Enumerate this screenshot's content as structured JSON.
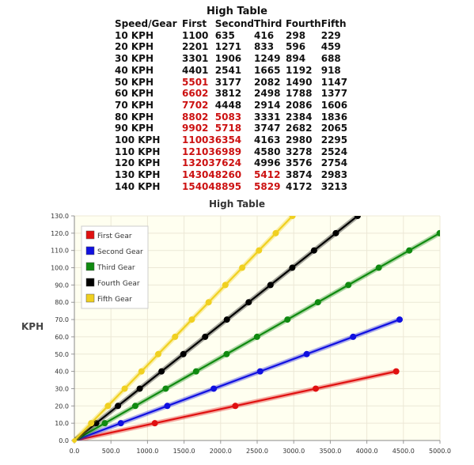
{
  "table": {
    "title": "High Table",
    "headers": [
      "Speed/Gear",
      "First",
      "Second",
      "Third",
      "Fourth",
      "Fifth"
    ],
    "rows": [
      {
        "cells": [
          "10 KPH",
          "1100",
          "635",
          "416",
          "298",
          "229"
        ],
        "red": []
      },
      {
        "cells": [
          "20 KPH",
          "2201",
          "1271",
          "833",
          "596",
          "459"
        ],
        "red": []
      },
      {
        "cells": [
          "30 KPH",
          "3301",
          "1906",
          "1249",
          "894",
          "688"
        ],
        "red": []
      },
      {
        "cells": [
          "40 KPH",
          "4401",
          "2541",
          "1665",
          "1192",
          "918"
        ],
        "red": []
      },
      {
        "cells": [
          "50 KPH",
          "5501",
          "3177",
          "2082",
          "1490",
          "1147"
        ],
        "red": [
          1
        ]
      },
      {
        "cells": [
          "60 KPH",
          "6602",
          "3812",
          "2498",
          "1788",
          "1377"
        ],
        "red": [
          1
        ]
      },
      {
        "cells": [
          "70 KPH",
          "7702",
          "4448",
          "2914",
          "2086",
          "1606"
        ],
        "red": [
          1
        ]
      },
      {
        "cells": [
          "80 KPH",
          "8802",
          "5083",
          "3331",
          "2384",
          "1836"
        ],
        "red": [
          1,
          2
        ]
      },
      {
        "cells": [
          "90 KPH",
          "9902",
          "5718",
          "3747",
          "2682",
          "2065"
        ],
        "red": [
          1,
          2
        ]
      },
      {
        "cells": [
          "100 KPH",
          "11003",
          "6354",
          "4163",
          "2980",
          "2295"
        ],
        "red": [
          1,
          2
        ]
      },
      {
        "cells": [
          "110 KPH",
          "12103",
          "6989",
          "4580",
          "3278",
          "2524"
        ],
        "red": [
          1,
          2
        ]
      },
      {
        "cells": [
          "120 KPH",
          "13203",
          "7624",
          "4996",
          "3576",
          "2754"
        ],
        "red": [
          1,
          2
        ]
      },
      {
        "cells": [
          "130 KPH",
          "14304",
          "8260",
          "5412",
          "3874",
          "2983"
        ],
        "red": [
          1,
          2,
          3
        ]
      },
      {
        "cells": [
          "140 KPH",
          "15404",
          "8895",
          "5829",
          "4172",
          "3213"
        ],
        "red": [
          1,
          2,
          3
        ]
      }
    ]
  },
  "chart_data": {
    "type": "line",
    "title": "High Table",
    "xlabel": "",
    "ylabel": "KPH",
    "xlim": [
      0,
      5000
    ],
    "ylim": [
      0,
      130
    ],
    "xticks": [
      "0.0",
      "500.0",
      "1000.0",
      "1500.0",
      "2000.0",
      "2500.0",
      "3000.0",
      "3500.0",
      "4000.0",
      "4500.0",
      "5000.0"
    ],
    "yticks": [
      "0.0",
      "10.0",
      "20.0",
      "30.0",
      "40.0",
      "50.0",
      "60.0",
      "70.0",
      "80.0",
      "90.0",
      "100.0",
      "110.0",
      "120.0",
      "130.0"
    ],
    "grid": true,
    "legend_position": "top-left",
    "series": [
      {
        "name": "First Gear",
        "color": "#e01010",
        "points": [
          [
            0,
            0
          ],
          [
            1100,
            10
          ],
          [
            2201,
            20
          ],
          [
            3301,
            30
          ],
          [
            4401,
            40
          ]
        ]
      },
      {
        "name": "Second Gear",
        "color": "#1010e0",
        "points": [
          [
            0,
            0
          ],
          [
            635,
            10
          ],
          [
            1271,
            20
          ],
          [
            1906,
            30
          ],
          [
            2541,
            40
          ],
          [
            3177,
            50
          ],
          [
            3812,
            60
          ],
          [
            4448,
            70
          ]
        ]
      },
      {
        "name": "Third Gear",
        "color": "#108a10",
        "points": [
          [
            0,
            0
          ],
          [
            416,
            10
          ],
          [
            833,
            20
          ],
          [
            1249,
            30
          ],
          [
            1665,
            40
          ],
          [
            2082,
            50
          ],
          [
            2498,
            60
          ],
          [
            2914,
            70
          ],
          [
            3331,
            80
          ],
          [
            3747,
            90
          ],
          [
            4163,
            100
          ],
          [
            4580,
            110
          ],
          [
            4996,
            120
          ]
        ]
      },
      {
        "name": "Fourth Gear",
        "color": "#000000",
        "points": [
          [
            0,
            0
          ],
          [
            298,
            10
          ],
          [
            596,
            20
          ],
          [
            894,
            30
          ],
          [
            1192,
            40
          ],
          [
            1490,
            50
          ],
          [
            1788,
            60
          ],
          [
            2086,
            70
          ],
          [
            2384,
            80
          ],
          [
            2682,
            90
          ],
          [
            2980,
            100
          ],
          [
            3278,
            110
          ],
          [
            3576,
            120
          ],
          [
            3874,
            130
          ]
        ]
      },
      {
        "name": "Fifth Gear",
        "color": "#f0d020",
        "points": [
          [
            0,
            0
          ],
          [
            229,
            10
          ],
          [
            459,
            20
          ],
          [
            688,
            30
          ],
          [
            918,
            40
          ],
          [
            1147,
            50
          ],
          [
            1377,
            60
          ],
          [
            1606,
            70
          ],
          [
            1836,
            80
          ],
          [
            2065,
            90
          ],
          [
            2295,
            100
          ],
          [
            2524,
            110
          ],
          [
            2754,
            120
          ],
          [
            2983,
            130
          ]
        ]
      }
    ]
  }
}
